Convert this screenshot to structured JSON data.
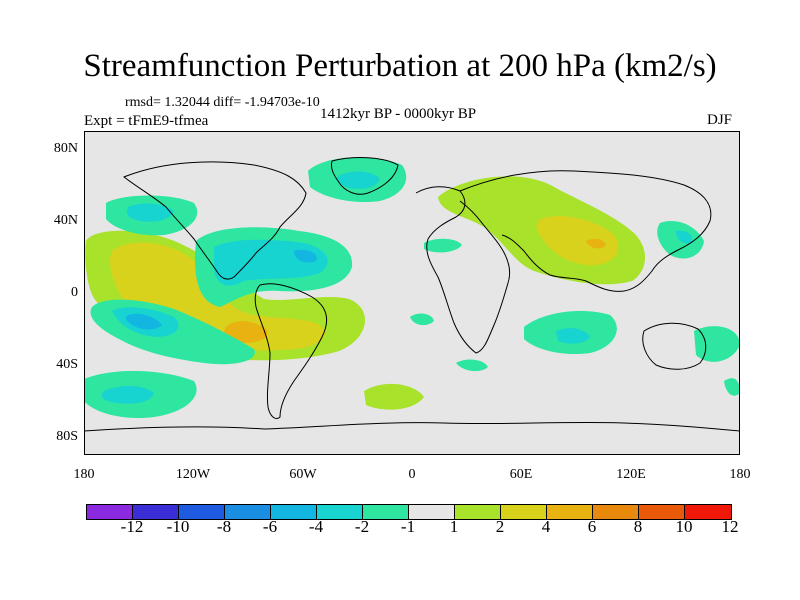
{
  "title": "Streamfunction Perturbation at 200 hPa (km2/s)",
  "stats": "rmsd= 1.32044  diff= -1.94703e-10",
  "left_label": "Expt = tFmE9-tfmea",
  "center_label": "1412kyr BP - 0000kyr BP",
  "right_label": "DJF",
  "lat_ticks": [
    "80N",
    "40N",
    "0",
    "40S",
    "80S"
  ],
  "lon_ticks": [
    "180",
    "120W",
    "60W",
    "0",
    "60E",
    "120E",
    "180"
  ],
  "colorbar": {
    "levels": [
      "-12",
      "-10",
      "-8",
      "-6",
      "-4",
      "-2",
      "-1",
      "1",
      "2",
      "4",
      "6",
      "8",
      "10",
      "12"
    ],
    "colors": [
      "#8a2be2",
      "#3a2fd6",
      "#1e5be0",
      "#1a8ee3",
      "#12b6e0",
      "#17d4d0",
      "#2ee6a0",
      "#e6e6e6",
      "#a8e22a",
      "#d9d21c",
      "#e8b210",
      "#e8880c",
      "#e85a0a",
      "#f01808"
    ]
  },
  "chart_data": {
    "type": "heatmap",
    "title": "Streamfunction Perturbation at 200 hPa (km2/s)",
    "variable": "Streamfunction Perturbation",
    "level": "200 hPa",
    "units": "km2/s",
    "season": "DJF",
    "period": "1412kyr BP - 0000kyr BP",
    "experiment": "tFmE9-tfmea",
    "rmsd": 1.32044,
    "diff": -1.94703e-10,
    "x_range": [
      -180,
      180
    ],
    "y_range": [
      -90,
      90
    ],
    "contour_levels": [
      -12,
      -10,
      -8,
      -6,
      -4,
      -2,
      -1,
      1,
      2,
      4,
      6,
      8,
      10,
      12
    ],
    "features": [
      {
        "name": "Pacific-South America positive band",
        "sign": "positive",
        "approx_max": 5
      },
      {
        "name": "Eastern South Pacific negative",
        "sign": "negative",
        "approx_min": -5
      },
      {
        "name": "Central America / Caribbean negative",
        "sign": "negative",
        "approx_min": -5
      },
      {
        "name": "North Pacific negative",
        "sign": "negative",
        "approx_min": -3
      },
      {
        "name": "Greenland / North Atlantic negative",
        "sign": "negative",
        "approx_min": -3
      },
      {
        "name": "Eurasia / Asia positive",
        "sign": "positive",
        "approx_max": 5
      },
      {
        "name": "Southern Indian Ocean negative",
        "sign": "negative",
        "approx_min": -3
      },
      {
        "name": "Western North Pacific negative",
        "sign": "negative",
        "approx_min": -3
      }
    ]
  }
}
